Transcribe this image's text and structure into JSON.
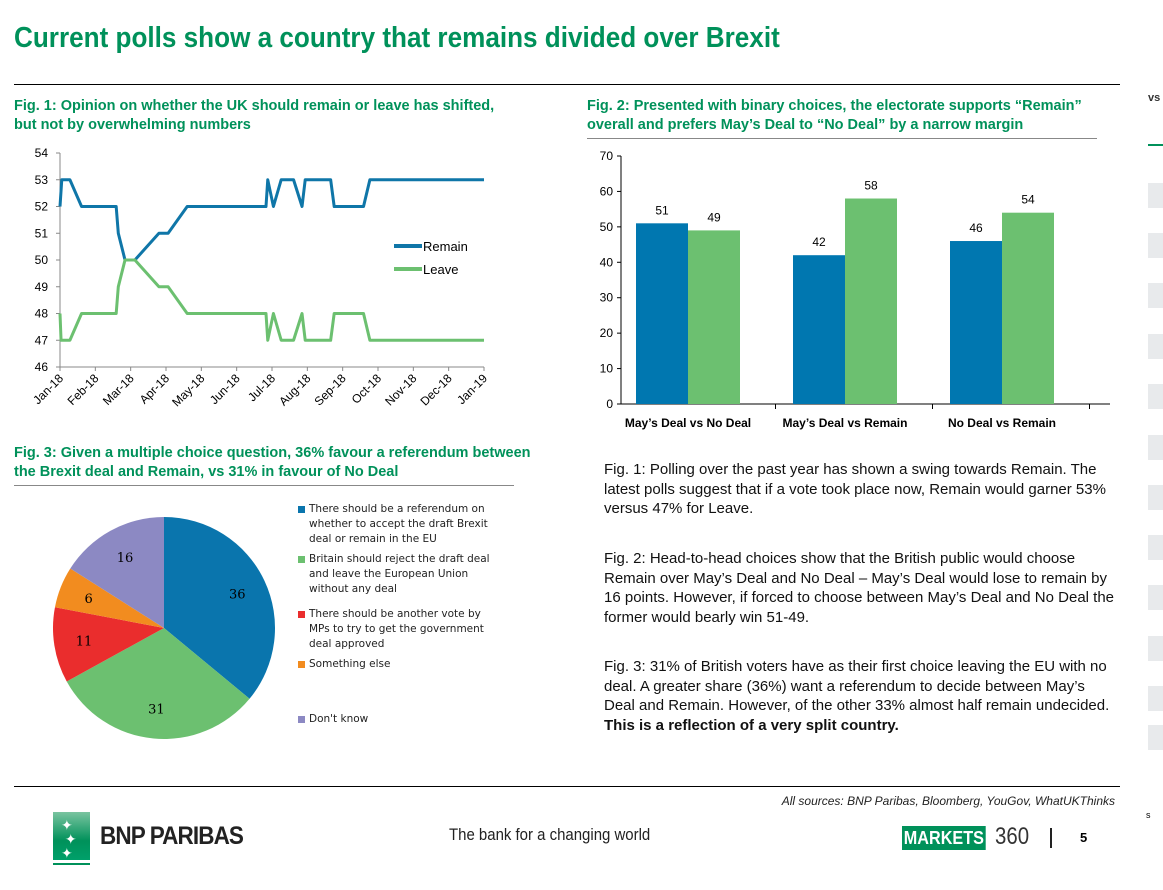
{
  "title": "Current polls show a country that remains divided over Brexit",
  "side_tab": "vs",
  "side_s": "s",
  "chart_data": [
    {
      "type": "line",
      "title": "Fig. 1: Opinion on whether the UK should remain or leave has shifted, but not by overwhelming numbers",
      "ylim": [
        46,
        54
      ],
      "yticks": [
        46,
        47,
        48,
        49,
        50,
        51,
        52,
        53,
        54
      ],
      "xticks": [
        "Jan-18",
        "Feb-18",
        "Mar-18",
        "Apr-18",
        "May-18",
        "Jun-18",
        "Jul-18",
        "Aug-18",
        "Sep-18",
        "Oct-18",
        "Nov-18",
        "Dec-18",
        "Jan-19"
      ],
      "legend_position": "right",
      "series": [
        {
          "name": "Remain",
          "color": "#0f76a8",
          "x": [
            0,
            0.05,
            0.28,
            0.61,
            1.59,
            1.65,
            1.84,
            2.12,
            2.8,
            3.06,
            3.6,
            5.83,
            5.88,
            6.04,
            6.26,
            6.61,
            6.85,
            6.94,
            7.66,
            7.76,
            8.59,
            8.77,
            12
          ],
          "y": [
            52,
            53,
            53,
            52,
            52,
            51,
            50,
            50,
            51,
            51,
            52,
            52,
            53,
            52,
            53,
            53,
            52,
            53,
            53,
            52,
            52,
            53,
            53
          ]
        },
        {
          "name": "Leave",
          "color": "#6cc070",
          "x": [
            0,
            0.03,
            0.28,
            0.61,
            1.59,
            1.65,
            1.84,
            2.12,
            2.8,
            3.06,
            3.6,
            5.83,
            5.88,
            6.04,
            6.26,
            6.61,
            6.85,
            6.94,
            7.66,
            7.76,
            8.59,
            8.77,
            12
          ],
          "y": [
            48,
            47,
            47,
            48,
            48,
            49,
            50,
            50,
            49,
            49,
            48,
            48,
            47,
            48,
            47,
            47,
            48,
            47,
            47,
            48,
            48,
            47,
            47
          ]
        }
      ]
    },
    {
      "type": "bar",
      "title": "Fig. 2: Presented with binary choices, the electorate supports “Remain” overall and prefers May’s Deal to “No Deal” by a narrow margin",
      "ylim": [
        0,
        70
      ],
      "yticks": [
        0,
        10,
        20,
        30,
        40,
        50,
        60,
        70
      ],
      "categories": [
        "May’s Deal vs No Deal",
        "May’s Deal vs Remain",
        "No Deal vs Remain"
      ],
      "series": [
        {
          "color": "#0077b0",
          "values": [
            51,
            42,
            46
          ]
        },
        {
          "color": "#6cc070",
          "values": [
            49,
            58,
            54
          ]
        }
      ]
    },
    {
      "type": "pie",
      "title": "Fig. 3: Given a multiple choice question, 36% favour a referendum between the Brexit deal and Remain, vs 31% in favour of No Deal",
      "slices": [
        {
          "label": "There should be a referendum on whether to accept the draft Brexit deal or remain in the EU",
          "value": 36,
          "color": "#0a75ad"
        },
        {
          "label": "Britain should reject the draft deal and leave the European Union without any deal",
          "value": 31,
          "color": "#6cc070"
        },
        {
          "label": "There should be another vote by MPs to try to get the government deal approved",
          "value": 11,
          "color": "#ea2d2d"
        },
        {
          "label": "Something else",
          "value": 6,
          "color": "#f28c1f"
        },
        {
          "label": "Don't know",
          "value": 16,
          "color": "#8c89c3"
        }
      ]
    }
  ],
  "text": {
    "p1": "Fig. 1: Polling over the past year has shown a swing towards Remain. The latest polls suggest that if a vote took place now, Remain would garner 53% versus 47% for Leave.",
    "p2": "Fig. 2: Head-to-head choices show that the British public would choose Remain over May’s Deal and No Deal – May’s Deal would lose to remain by 16 points. However, if forced to choose between May’s Deal and No Deal the former would bearly win 51-49.",
    "p3a": "Fig. 3: 31% of British voters have as their first choice leaving the EU with no deal. A greater share (36%) want a referendum to decide between May’s Deal and Remain. However, of the other 33% almost half remain undecided. ",
    "p3b": "This is a reflection of a very split country."
  },
  "footer": {
    "sources": "All sources: BNP Paribas, Bloomberg, YouGov, WhatUKThinks",
    "brand": "BNP PARIBAS",
    "tagline": "The bank for a changing world",
    "markets": "MARKETS",
    "markets_num": "360",
    "page": "5"
  }
}
